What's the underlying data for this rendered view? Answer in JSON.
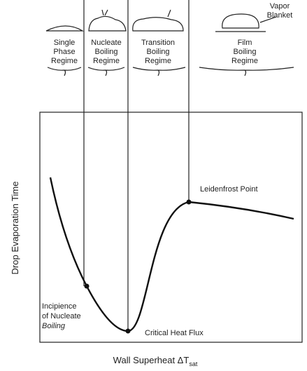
{
  "regimes": [
    {
      "lines": [
        "Single",
        "Phase",
        "Regime"
      ]
    },
    {
      "lines": [
        "Nucleate",
        "Boiling",
        "Regime"
      ]
    },
    {
      "lines": [
        "Transition",
        "Boiling",
        "Regime"
      ]
    },
    {
      "lines": [
        "Film",
        "Boiling",
        "Regime"
      ]
    }
  ],
  "vapor_blanket": [
    "Vapor",
    "Blanket"
  ],
  "annotations": {
    "leidenfrost": "Leidenfrost Point",
    "incipience": [
      "Incipience",
      "of Nucleate",
      "Boiling"
    ],
    "critical_heat_flux": "Critical Heat Flux"
  },
  "axes": {
    "y_label": "Drop Evaporation Time",
    "x_label": "Wall Superheat ΔT",
    "x_label_subscript": "sat"
  }
}
